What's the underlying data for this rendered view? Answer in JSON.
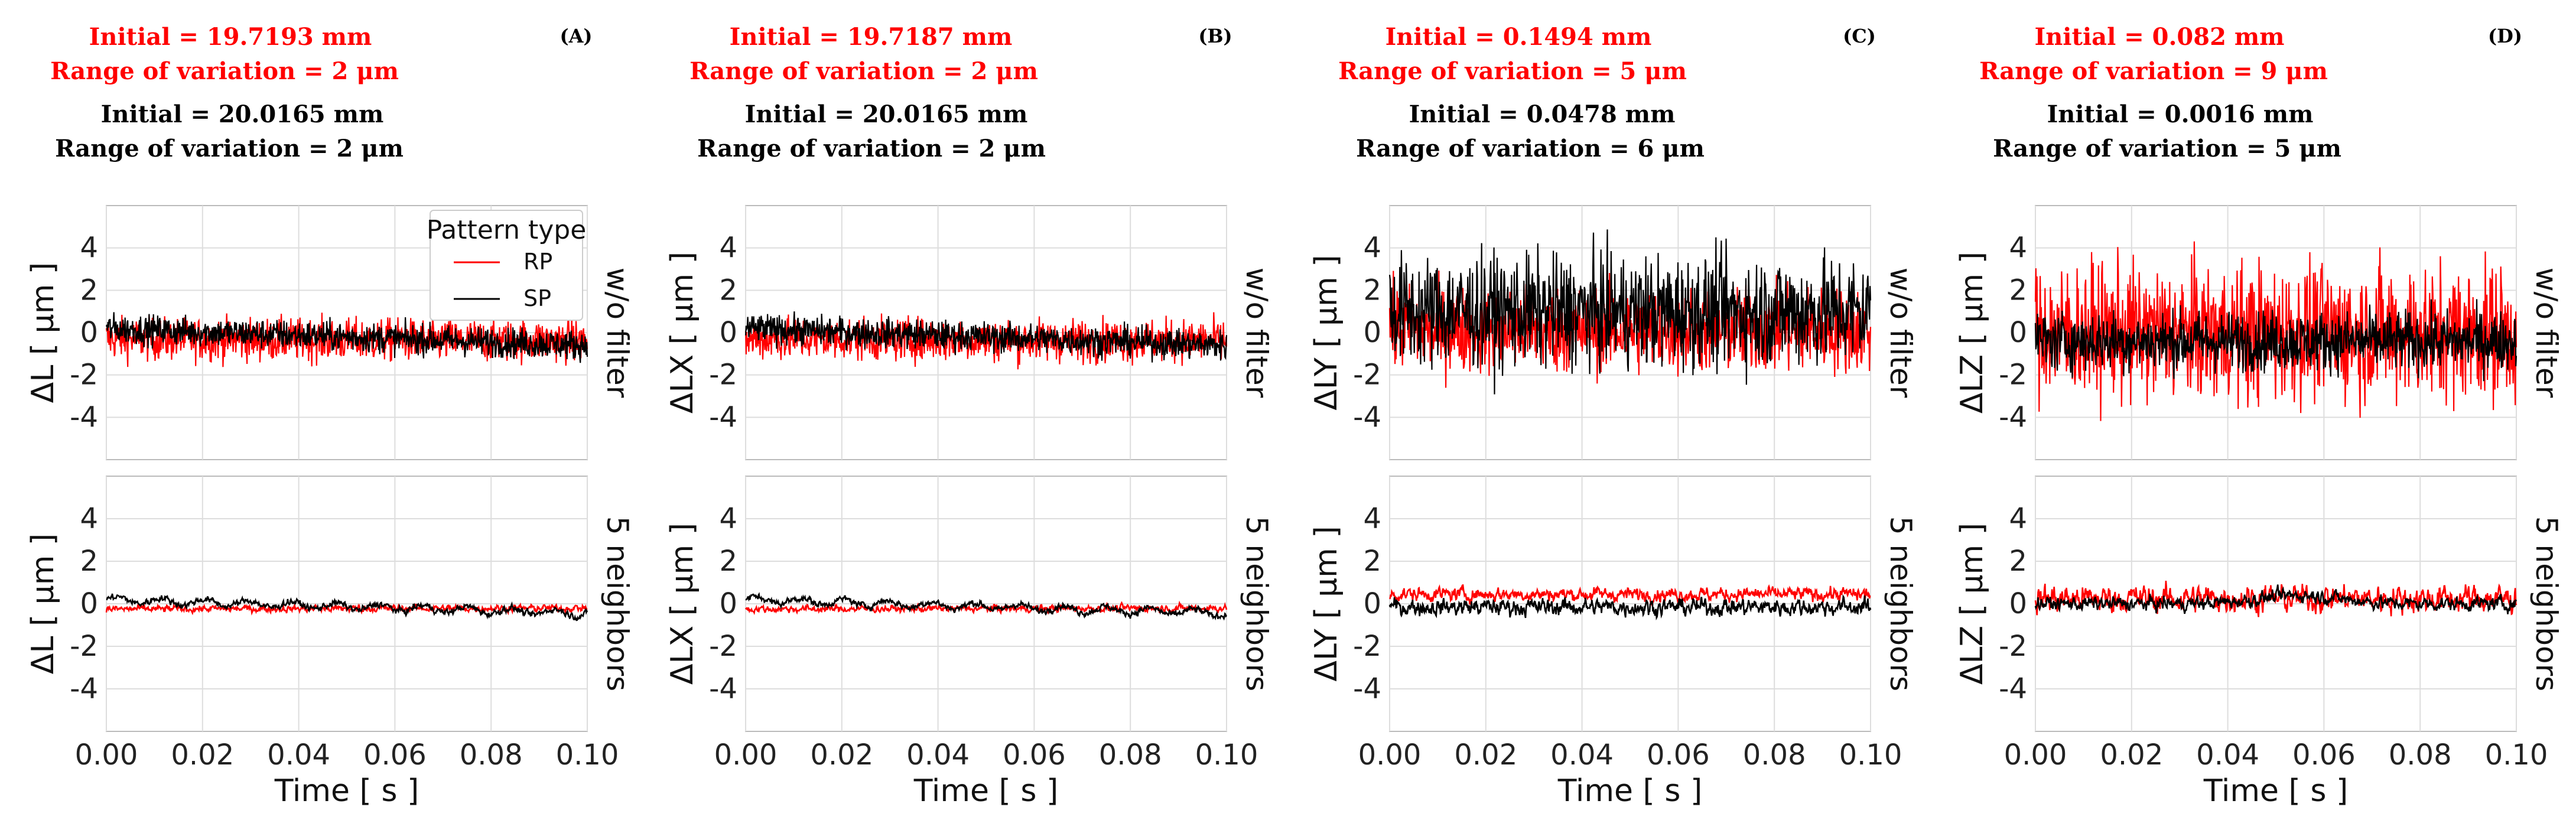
{
  "colors": {
    "rp": "#ff0000",
    "sp": "#000000",
    "grid": "#dddddd",
    "frame": "#bbbbbb"
  },
  "legend": {
    "title": "Pattern type",
    "entries": [
      "RP",
      "SP"
    ]
  },
  "row_labels": [
    "w/o filter",
    "5 neighbors"
  ],
  "chart_data": [
    {
      "type": "line",
      "panel": "(A)",
      "annotations": {
        "rp_initial": "Initial = 19.7193 mm",
        "rp_range": "Range of variation = 2 μm",
        "sp_initial": "Initial = 20.0165 mm",
        "sp_range": "Range of variation = 2 μm"
      },
      "ylabel": "ΔL [ μm ]",
      "xlabel": "Time [ s ]",
      "xlim": [
        0.0,
        0.1
      ],
      "ylim": [
        -6,
        6
      ],
      "xticks": [
        "0.00",
        "0.02",
        "0.04",
        "0.06",
        "0.08",
        "0.10"
      ],
      "yticks": [
        "4",
        "2",
        "0",
        "-2",
        "-4"
      ],
      "subplots": [
        {
          "filter": "w/o filter",
          "series": [
            {
              "name": "RP",
              "baseline": -0.3,
              "trend": -0.1,
              "noise": 0.5
            },
            {
              "name": "SP",
              "baseline": 0.2,
              "trend": -0.8,
              "noise": 0.35
            }
          ]
        },
        {
          "filter": "5 neighbors",
          "series": [
            {
              "name": "RP",
              "baseline": -0.25,
              "trend": 0.05,
              "noise": 0.1
            },
            {
              "name": "SP",
              "baseline": 0.2,
              "trend": -0.65,
              "noise": 0.1,
              "wave": 0.15
            }
          ]
        }
      ]
    },
    {
      "type": "line",
      "panel": "(B)",
      "annotations": {
        "rp_initial": "Initial = 19.7187 mm",
        "rp_range": "Range of variation = 2 μm",
        "sp_initial": "Initial = 20.0165 mm",
        "sp_range": "Range of variation = 2 μm"
      },
      "ylabel": "ΔLX [ μm ]",
      "xlabel": "Time [ s ]",
      "xlim": [
        0.0,
        0.1
      ],
      "ylim": [
        -6,
        6
      ],
      "xticks": [
        "0.00",
        "0.02",
        "0.04",
        "0.06",
        "0.08",
        "0.10"
      ],
      "yticks": [
        "4",
        "2",
        "0",
        "-2",
        "-4"
      ],
      "subplots": [
        {
          "filter": "w/o filter",
          "series": [
            {
              "name": "RP",
              "baseline": -0.3,
              "trend": -0.1,
              "noise": 0.5
            },
            {
              "name": "SP",
              "baseline": 0.2,
              "trend": -0.8,
              "noise": 0.35
            }
          ]
        },
        {
          "filter": "5 neighbors",
          "series": [
            {
              "name": "RP",
              "baseline": -0.25,
              "trend": 0.05,
              "noise": 0.1
            },
            {
              "name": "SP",
              "baseline": 0.2,
              "trend": -0.65,
              "noise": 0.1,
              "wave": 0.15
            }
          ]
        }
      ]
    },
    {
      "type": "line",
      "panel": "(C)",
      "annotations": {
        "rp_initial": "Initial = 0.1494 mm",
        "rp_range": "Range of variation = 5 μm",
        "sp_initial": "Initial = 0.0478 mm",
        "sp_range": "Range of variation = 6 μm"
      },
      "ylabel": "ΔLY [ μm ]",
      "xlabel": "Time [ s ]",
      "xlim": [
        0.0,
        0.1
      ],
      "ylim": [
        -6,
        6
      ],
      "xticks": [
        "0.00",
        "0.02",
        "0.04",
        "0.06",
        "0.08",
        "0.10"
      ],
      "yticks": [
        "4",
        "2",
        "0",
        "-2",
        "-4"
      ],
      "subplots": [
        {
          "filter": "w/o filter",
          "series": [
            {
              "name": "RP",
              "baseline": 0.1,
              "trend": 0.0,
              "noise": 1.0
            },
            {
              "name": "SP",
              "baseline": 1.0,
              "trend": 0.0,
              "noise": 1.3
            }
          ]
        },
        {
          "filter": "5 neighbors",
          "series": [
            {
              "name": "RP",
              "baseline": 0.45,
              "trend": 0.0,
              "noise": 0.2
            },
            {
              "name": "SP",
              "baseline": -0.15,
              "trend": 0.0,
              "noise": 0.25
            }
          ]
        }
      ]
    },
    {
      "type": "line",
      "panel": "(D)",
      "annotations": {
        "rp_initial": "Initial = 0.082 mm",
        "rp_range": "Range of variation = 9 μm",
        "sp_initial": "Initial = 0.0016 mm",
        "sp_range": "Range of variation = 5 μm"
      },
      "ylabel": "ΔLZ [ μm ]",
      "xlabel": "Time [ s ]",
      "xlim": [
        0.0,
        0.1
      ],
      "ylim": [
        -6,
        6
      ],
      "xticks": [
        "0.00",
        "0.02",
        "0.04",
        "0.06",
        "0.08",
        "0.10"
      ],
      "yticks": [
        "4",
        "2",
        "0",
        "-2",
        "-4"
      ],
      "subplots": [
        {
          "filter": "w/o filter",
          "series": [
            {
              "name": "RP",
              "baseline": 0.0,
              "trend": 0.0,
              "noise": 1.6
            },
            {
              "name": "SP",
              "baseline": -0.4,
              "trend": 0.0,
              "noise": 0.7
            }
          ]
        },
        {
          "filter": "5 neighbors",
          "series": [
            {
              "name": "RP",
              "baseline": 0.25,
              "trend": 0.0,
              "noise": 0.4
            },
            {
              "name": "SP",
              "baseline": 0.0,
              "trend": 0.0,
              "noise": 0.2,
              "bump": 0.4
            }
          ]
        }
      ]
    }
  ]
}
